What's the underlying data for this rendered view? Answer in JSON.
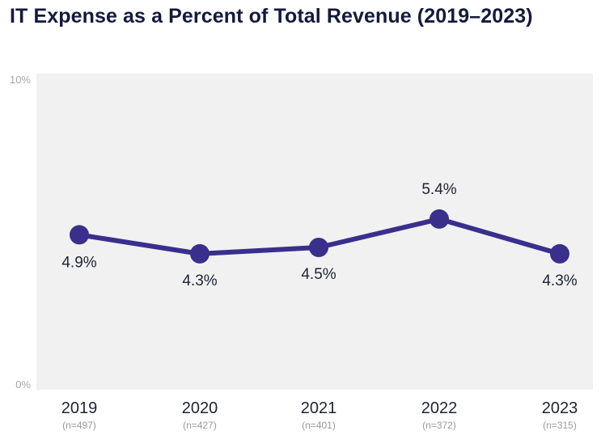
{
  "chart_data": {
    "type": "line",
    "title": "IT Expense as a Percent of Total Revenue (2019–2023)",
    "categories": [
      "2019",
      "2020",
      "2021",
      "2022",
      "2023"
    ],
    "category_sublabels": [
      "(n=497)",
      "(n=427)",
      "(n=401)",
      "(n=372)",
      "(n=315)"
    ],
    "values": [
      4.9,
      4.3,
      4.5,
      5.4,
      4.3
    ],
    "value_labels": [
      "4.9%",
      "4.3%",
      "4.5%",
      "5.4%",
      "4.3%"
    ],
    "y_tick_labels": [
      "10%",
      "0%"
    ],
    "ylim": [
      0,
      10
    ],
    "grid": false,
    "colors": {
      "line": "#3a2f8c",
      "marker": "#3a2f8c",
      "plot_background": "#f1f1f1",
      "title": "#141a3c"
    }
  }
}
